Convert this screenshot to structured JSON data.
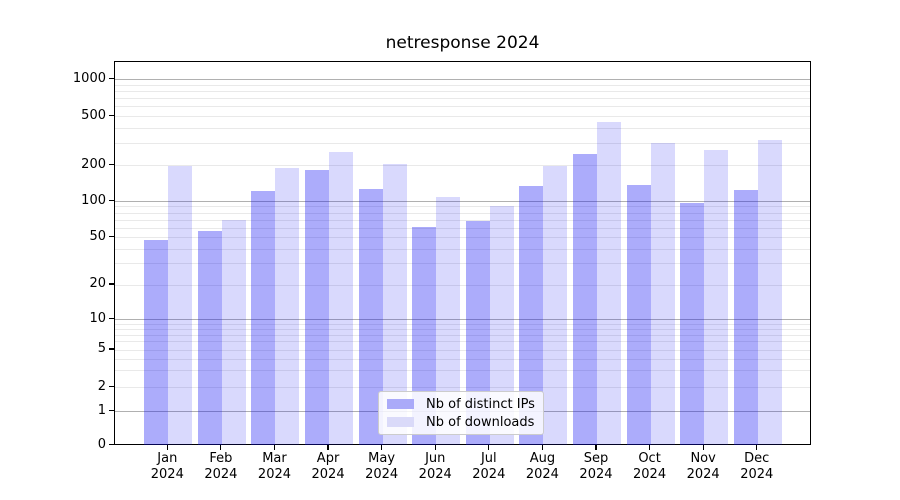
{
  "chart_data": {
    "type": "bar",
    "title": "netresponse 2024",
    "categories": [
      "Jan",
      "Feb",
      "Mar",
      "Apr",
      "May",
      "Jun",
      "Jul",
      "Aug",
      "Sep",
      "Oct",
      "Nov",
      "Dec"
    ],
    "year_label": "2024",
    "series": [
      {
        "name": "Nb of distinct IPs",
        "color": "rgba(13,13,242,0.34)",
        "swatch_color": "#aaaaf9",
        "values": [
          48,
          57,
          122,
          184,
          128,
          61,
          69,
          134,
          250,
          137,
          98,
          124
        ]
      },
      {
        "name": "Nb of downloads",
        "color": "rgba(13,13,242,0.155)",
        "swatch_color": "#dadaf9",
        "values": [
          200,
          70,
          190,
          258,
          206,
          110,
          91,
          200,
          450,
          305,
          270,
          320
        ]
      }
    ],
    "y_ticks": [
      1000,
      500,
      200,
      100,
      50,
      20,
      10,
      5,
      2,
      1,
      0
    ],
    "y_scale": "log-like with linear segment below 1 (symlog)",
    "ylim": [
      0,
      1500
    ],
    "xlabel": "",
    "ylabel": "",
    "grid": true,
    "gridline_major_color": "#b0b0b0",
    "gridline_minor_color": "#e9e9e9",
    "legend_position": "lower center",
    "background_color": "#ffffff"
  }
}
